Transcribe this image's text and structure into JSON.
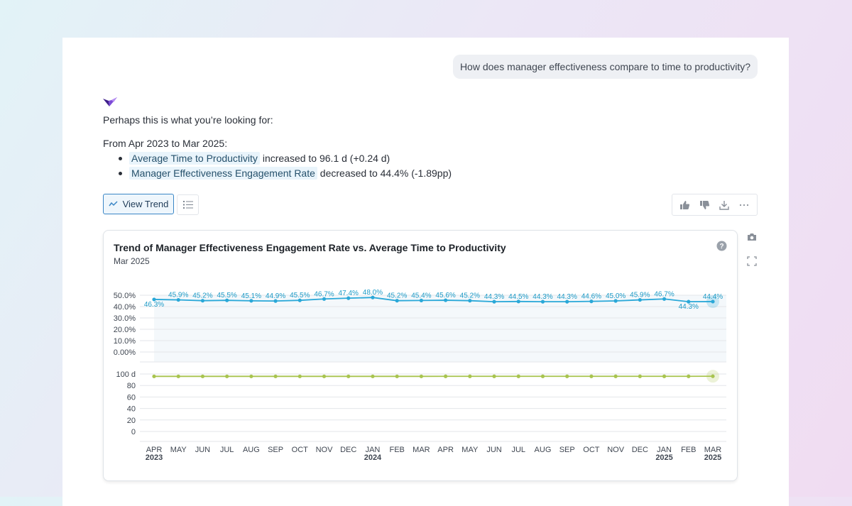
{
  "conversation": {
    "user_question": "How does manager effectiveness compare to time to productivity?",
    "intro": "Perhaps this is what you’re looking for:",
    "range_text": "From Apr 2023 to Mar 2025:",
    "bullets": [
      {
        "metric": "Average Time to Productivity",
        "text": " increased to 96.1 d (+0.24 d)"
      },
      {
        "metric": "Manager Effectiveness Engagement Rate",
        "text": " decreased to 44.4% (-1.89pp)"
      }
    ]
  },
  "toolbar": {
    "view_trend_label": "View Trend",
    "view_trend_icon": "trend-line-icon",
    "list_icon": "list-icon",
    "actions": [
      "thumbs-up-icon",
      "thumbs-down-icon",
      "download-icon",
      "more-icon"
    ],
    "side_actions": [
      "camera-icon",
      "expand-icon"
    ]
  },
  "colors": {
    "engagement_series": "#2aa8d8",
    "productivity_series": "#a8c44e",
    "accent": "#3a86c6"
  },
  "chart_data": {
    "type": "line",
    "title": "Trend of Manager Effectiveness Engagement Rate vs. Average Time to Productivity",
    "subtitle": "Mar 2025",
    "categories": [
      "APR",
      "MAY",
      "JUN",
      "JUL",
      "AUG",
      "SEP",
      "OCT",
      "NOV",
      "DEC",
      "JAN",
      "FEB",
      "MAR",
      "APR",
      "MAY",
      "JUN",
      "JUL",
      "AUG",
      "SEP",
      "OCT",
      "NOV",
      "DEC",
      "JAN",
      "FEB",
      "MAR"
    ],
    "year_labels": [
      "2023",
      "",
      "",
      "",
      "",
      "",
      "",
      "",
      "",
      "2024",
      "",
      "",
      "",
      "",
      "",
      "",
      "",
      "",
      "",
      "",
      "",
      "2025",
      "",
      "2025"
    ],
    "panels": [
      {
        "series_name": "Manager Effectiveness Engagement Rate",
        "values": [
          46.3,
          45.9,
          45.2,
          45.5,
          45.1,
          44.9,
          45.5,
          46.7,
          47.4,
          48.0,
          45.2,
          45.4,
          45.6,
          45.2,
          44.3,
          44.5,
          44.3,
          44.3,
          44.6,
          45.0,
          45.9,
          46.7,
          44.3,
          44.4
        ],
        "labels": [
          "46.3%",
          "45.9%",
          "45.2%",
          "45.5%",
          "45.1%",
          "44.9%",
          "45.5%",
          "46.7%",
          "47.4%",
          "48.0%",
          "45.2%",
          "45.4%",
          "45.6%",
          "45.2%",
          "44.3%",
          "44.5%",
          "44.3%",
          "44.3%",
          "44.6%",
          "45.0%",
          "45.9%",
          "46.7%",
          "44.3%",
          "44.4%"
        ],
        "yticks": [
          "50.0%",
          "40.0%",
          "30.0%",
          "20.0%",
          "10.0%",
          "0.00%"
        ],
        "ylim": [
          0,
          50
        ]
      },
      {
        "series_name": "Average Time to Productivity",
        "values": [
          95.9,
          95.9,
          95.9,
          95.9,
          95.9,
          95.9,
          95.9,
          95.9,
          95.9,
          95.9,
          95.9,
          95.9,
          96.0,
          96.0,
          96.0,
          96.0,
          96.0,
          96.0,
          96.0,
          96.0,
          96.0,
          96.0,
          96.0,
          96.1
        ],
        "yticks": [
          "100 d",
          "80",
          "60",
          "40",
          "20",
          "0"
        ],
        "ylim": [
          0,
          100
        ]
      }
    ],
    "grid": true
  }
}
